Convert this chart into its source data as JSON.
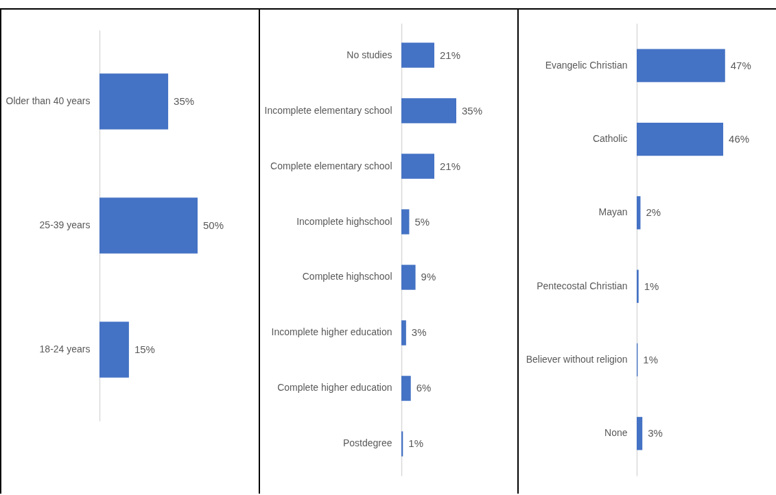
{
  "chart_data": [
    {
      "type": "bar",
      "orientation": "horizontal",
      "categories": [
        "Older than 40 years",
        "25-39 years",
        "18-24 years"
      ],
      "values": [
        35,
        50,
        15
      ],
      "color": "#4472c4",
      "value_labels": [
        "35%",
        "50%",
        "15%"
      ]
    },
    {
      "type": "bar",
      "orientation": "horizontal",
      "categories": [
        "No studies",
        "Incomplete elementary school",
        "Complete elementary school",
        "Incomplete highschool",
        "Complete highschool",
        "Incomplete higher education",
        "Complete higher education",
        "Postdegree"
      ],
      "values": [
        21,
        35,
        21,
        5,
        9,
        3,
        6,
        1
      ],
      "color": "#4472c4",
      "value_labels": [
        "21%",
        "35%",
        "21%",
        "5%",
        "9%",
        "3%",
        "6%",
        "1%"
      ]
    },
    {
      "type": "bar",
      "orientation": "horizontal",
      "categories": [
        "Evangelic Christian",
        "Catholic",
        "Mayan",
        "Pentecostal Christian",
        "Believer without  religion",
        "None"
      ],
      "values": [
        47,
        46,
        2,
        1,
        0.5,
        3
      ],
      "color": "#4472c4",
      "value_labels": [
        "47%",
        "46%",
        "2%",
        "1%",
        "1%",
        "3%"
      ]
    }
  ]
}
